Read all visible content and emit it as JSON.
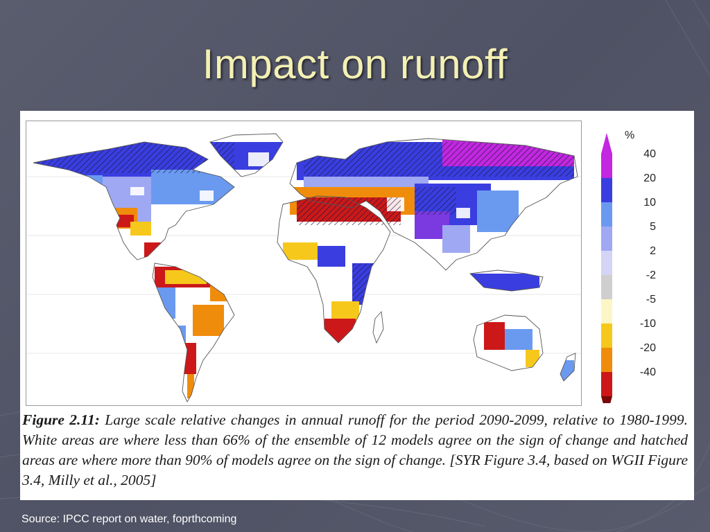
{
  "slide": {
    "title": "Impact on runoff",
    "source": "Source: IPCC report on water, foprthcoming"
  },
  "figure": {
    "label": "Figure 2.11:",
    "caption": "Large scale relative changes in annual runoff for the period 2090-2099, relative to 1980-1999. White areas are where less than 66% of the ensemble of 12 models agree on the sign of change and hatched areas are where more than 90% of models agree on the sign of change. [SYR Figure 3.4, based on WGII Figure 3.4, Milly et al., 2005]"
  },
  "legend": {
    "unit": "%",
    "bins": [
      {
        "label": "40",
        "color": "#c327e0"
      },
      {
        "label": "20",
        "color": "#3a3ee0"
      },
      {
        "label": "10",
        "color": "#6a9af0"
      },
      {
        "label": "5",
        "color": "#9fa8f2"
      },
      {
        "label": "2",
        "color": "#d4d4f6"
      },
      {
        "label": "-2",
        "color": "#cfcfcf"
      },
      {
        "label": "-5",
        "color": "#fbf6c4"
      },
      {
        "label": "-10",
        "color": "#f6c81c"
      },
      {
        "label": "-20",
        "color": "#f08c0c"
      },
      {
        "label": "-40",
        "color": "#cc1818"
      }
    ],
    "low_cap_color": "#7a0a0a"
  },
  "map": {
    "land_color": "#ffffff",
    "coast_color": "#555555"
  }
}
